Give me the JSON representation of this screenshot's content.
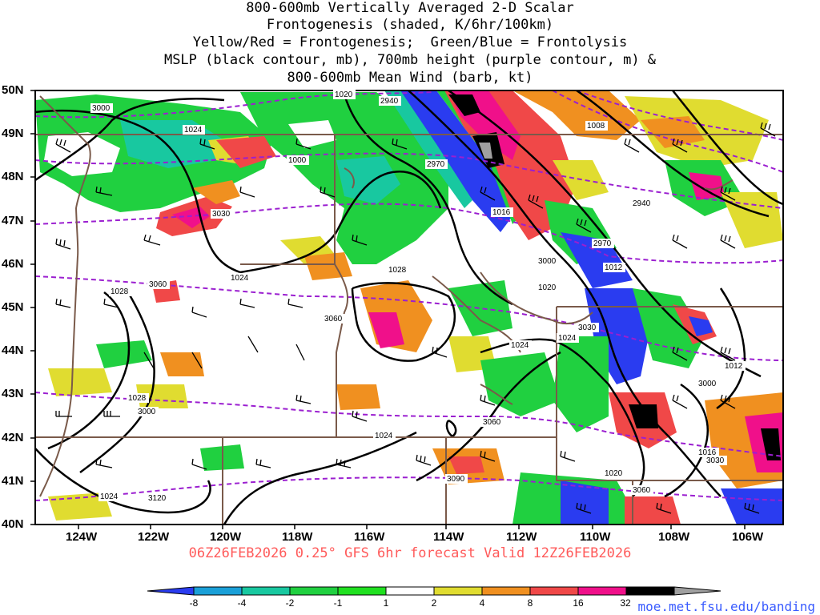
{
  "title_lines": [
    "800-600mb Vertically Averaged 2-D Scalar",
    "Frontogenesis (shaded, K/6hr/100km)",
    "Yellow/Red = Frontogenesis;  Green/Blue = Frontolysis",
    "MSLP (black contour, mb), 700mb height (purple contour, m) &",
    "800-600mb Mean Wind (barb, kt)"
  ],
  "lat_labels": [
    "50N",
    "49N",
    "48N",
    "47N",
    "46N",
    "45N",
    "44N",
    "43N",
    "42N",
    "41N",
    "40N"
  ],
  "lon_labels": [
    "124W",
    "122W",
    "120W",
    "118W",
    "116W",
    "114W",
    "112W",
    "110W",
    "108W",
    "106W"
  ],
  "valid_text": "06Z26FEB2026 0.25° GFS 6hr forecast Valid 12Z26FEB2026",
  "credit": "moe.met.fsu.edu/banding",
  "colorbar": {
    "labels": [
      "-8",
      "-4",
      "-2",
      "-1",
      "1",
      "2",
      "4",
      "8",
      "16",
      "32"
    ],
    "colors": [
      "#2a3cf0",
      "#1aa0d8",
      "#18c8a0",
      "#20d040",
      "#20e020",
      "#ffffff",
      "#e0dc30",
      "#f09020",
      "#f04848",
      "#f0108a",
      "#000000",
      "#a0a0a0"
    ]
  },
  "mslp_labels": [
    "1020",
    "1024",
    "1000",
    "1016",
    "1028",
    "1024",
    "1028",
    "1012",
    "1020",
    "1024",
    "1024",
    "1008",
    "1012",
    "1016",
    "1020",
    "1024",
    "1028",
    "1024"
  ],
  "height_labels": [
    "3000",
    "2940",
    "2970",
    "3030",
    "2940",
    "2970",
    "3000",
    "3060",
    "3060",
    "3030",
    "3000",
    "3000",
    "3060",
    "3090",
    "3060",
    "3120",
    "3030"
  ]
}
